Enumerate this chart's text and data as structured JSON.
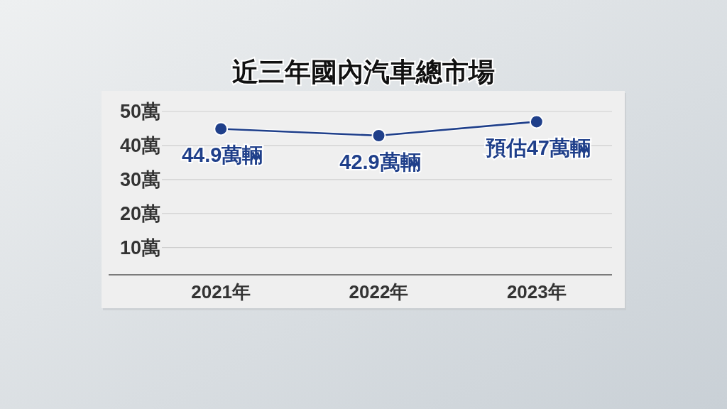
{
  "chart_data": {
    "type": "line",
    "title": "近三年國內汽車總市場",
    "categories": [
      "2021年",
      "2022年",
      "2023年"
    ],
    "series": [
      {
        "color": "#1f3f8a",
        "values": [
          44.9,
          42.9,
          47
        ],
        "value_labels": [
          "44.9萬輛",
          "42.9萬輛",
          "預估47萬輛"
        ]
      }
    ],
    "ylim": [
      2,
      50
    ],
    "yticks": [
      {
        "value": 10,
        "label": "10萬"
      },
      {
        "value": 20,
        "label": "20萬"
      },
      {
        "value": 30,
        "label": "30萬"
      },
      {
        "value": 40,
        "label": "40萬"
      },
      {
        "value": 50,
        "label": "50萬"
      }
    ],
    "grid": "y",
    "marker": "circle",
    "line_style": "solid"
  }
}
